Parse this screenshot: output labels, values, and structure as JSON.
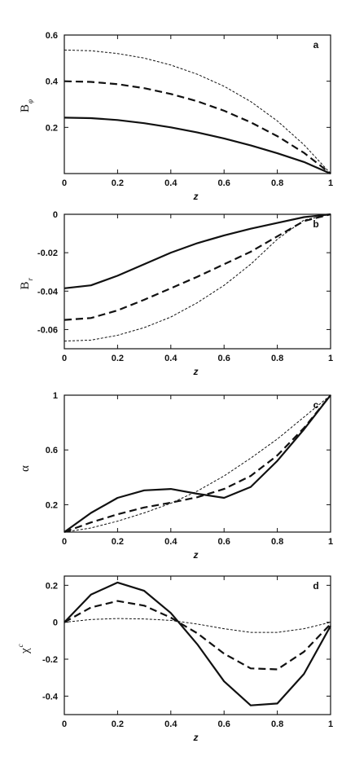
{
  "chart_data": [
    {
      "type": "line",
      "panel": "a",
      "ylabel": "B",
      "ylabel_sub": "φ",
      "xlabel": "z",
      "xlim": [
        0,
        1
      ],
      "ylim": [
        0,
        0.6
      ],
      "xticks": [
        "0",
        "0.2",
        "0.4",
        "0.6",
        "0.8",
        "1"
      ],
      "yticks": [
        {
          "v": 0.2,
          "t": "0.2"
        },
        {
          "v": 0.4,
          "t": "0.4"
        },
        {
          "v": 0.6,
          "t": "0.6"
        }
      ],
      "x": [
        0,
        0.1,
        0.2,
        0.3,
        0.4,
        0.5,
        0.6,
        0.7,
        0.8,
        0.9,
        1.0
      ],
      "series": [
        {
          "style": "solid",
          "values": [
            0.242,
            0.24,
            0.232,
            0.218,
            0.2,
            0.178,
            0.152,
            0.122,
            0.088,
            0.05,
            0.0
          ]
        },
        {
          "style": "dashed",
          "values": [
            0.4,
            0.397,
            0.387,
            0.37,
            0.345,
            0.313,
            0.272,
            0.222,
            0.162,
            0.09,
            0.0
          ]
        },
        {
          "style": "dotted",
          "values": [
            0.535,
            0.532,
            0.52,
            0.5,
            0.47,
            0.43,
            0.378,
            0.312,
            0.228,
            0.125,
            0.0
          ]
        }
      ]
    },
    {
      "type": "line",
      "panel": "b",
      "ylabel": "B",
      "ylabel_sub": "r",
      "xlabel": "z",
      "xlim": [
        0,
        1
      ],
      "ylim": [
        -0.07,
        0
      ],
      "xticks": [
        "0",
        "0.2",
        "0.4",
        "0.6",
        "0.8",
        "1"
      ],
      "yticks": [
        {
          "v": 0,
          "t": "0"
        },
        {
          "v": -0.02,
          "t": "-0.02"
        },
        {
          "v": -0.04,
          "t": "-0.04"
        },
        {
          "v": -0.06,
          "t": "-0.06"
        }
      ],
      "x": [
        0,
        0.1,
        0.2,
        0.3,
        0.4,
        0.5,
        0.6,
        0.7,
        0.8,
        0.9,
        1.0
      ],
      "series": [
        {
          "style": "solid",
          "values": [
            -0.0385,
            -0.037,
            -0.032,
            -0.026,
            -0.02,
            -0.015,
            -0.011,
            -0.0075,
            -0.0045,
            -0.0015,
            0.0
          ]
        },
        {
          "style": "dashed",
          "values": [
            -0.055,
            -0.054,
            -0.05,
            -0.0445,
            -0.0385,
            -0.0325,
            -0.026,
            -0.0195,
            -0.0115,
            -0.0035,
            0.0
          ]
        },
        {
          "style": "dotted",
          "values": [
            -0.066,
            -0.0655,
            -0.063,
            -0.059,
            -0.0535,
            -0.046,
            -0.037,
            -0.026,
            -0.013,
            -0.003,
            0.0
          ]
        }
      ]
    },
    {
      "type": "line",
      "panel": "c",
      "ylabel": "α",
      "xlabel": "z",
      "xlim": [
        0,
        1
      ],
      "ylim": [
        0,
        1
      ],
      "xticks": [
        "0",
        "0.2",
        "0.4",
        "0.6",
        "0.8",
        "1"
      ],
      "yticks": [
        {
          "v": 0.2,
          "t": "0.2"
        },
        {
          "v": 0.6,
          "t": "0.6"
        },
        {
          "v": 1,
          "t": "1"
        }
      ],
      "x": [
        0,
        0.1,
        0.2,
        0.3,
        0.4,
        0.5,
        0.6,
        0.7,
        0.8,
        0.9,
        1.0
      ],
      "series": [
        {
          "style": "solid",
          "values": [
            0.0,
            0.14,
            0.25,
            0.305,
            0.315,
            0.28,
            0.25,
            0.33,
            0.52,
            0.75,
            1.0
          ]
        },
        {
          "style": "dashed",
          "values": [
            0.0,
            0.07,
            0.13,
            0.18,
            0.215,
            0.255,
            0.315,
            0.41,
            0.56,
            0.76,
            1.0
          ]
        },
        {
          "style": "dotted",
          "values": [
            0.0,
            0.03,
            0.08,
            0.14,
            0.21,
            0.3,
            0.41,
            0.54,
            0.68,
            0.84,
            1.0
          ]
        }
      ]
    },
    {
      "type": "line",
      "panel": "d",
      "ylabel": "χ",
      "ylabel_sup": "c",
      "xlabel": "z",
      "xlim": [
        0,
        1
      ],
      "ylim": [
        -0.5,
        0.25
      ],
      "xticks": [
        "0",
        "0.2",
        "0.4",
        "0.6",
        "0.8",
        "1"
      ],
      "yticks": [
        {
          "v": 0.2,
          "t": "0.2"
        },
        {
          "v": 0,
          "t": "0"
        },
        {
          "v": -0.2,
          "t": "-0.2"
        },
        {
          "v": -0.4,
          "t": "-0.4"
        }
      ],
      "x": [
        0,
        0.1,
        0.2,
        0.3,
        0.4,
        0.5,
        0.6,
        0.7,
        0.8,
        0.9,
        1.0
      ],
      "series": [
        {
          "style": "solid",
          "values": [
            0.0,
            0.15,
            0.215,
            0.17,
            0.05,
            -0.12,
            -0.32,
            -0.45,
            -0.44,
            -0.28,
            -0.02
          ]
        },
        {
          "style": "dashed",
          "values": [
            0.0,
            0.08,
            0.115,
            0.09,
            0.025,
            -0.06,
            -0.17,
            -0.25,
            -0.255,
            -0.16,
            -0.01
          ]
        },
        {
          "style": "dotted",
          "values": [
            0.0,
            0.015,
            0.02,
            0.018,
            0.01,
            -0.01,
            -0.035,
            -0.055,
            -0.055,
            -0.035,
            0.0
          ]
        }
      ]
    }
  ]
}
